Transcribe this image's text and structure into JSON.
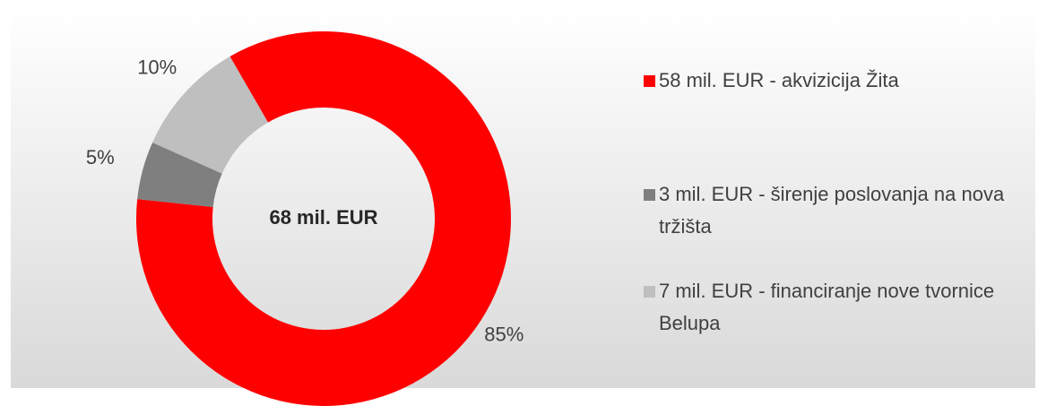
{
  "chart_data": {
    "type": "donut",
    "center_label": "68 mil. EUR",
    "series": [
      {
        "name": "58 mil. EUR - akvizicija Žita",
        "color": "#ff0000",
        "value": 85,
        "value_label": "85%"
      },
      {
        "name": "3 mil. EUR - širenje poslovanja na nova tržišta",
        "color": "#7f7f7f",
        "value": 5,
        "value_label": "5%"
      },
      {
        "name": "7 mil. EUR - financiranje nove tvornice Belupa",
        "color": "#bfbfbf",
        "value": 10,
        "value_label": "10%"
      }
    ]
  }
}
